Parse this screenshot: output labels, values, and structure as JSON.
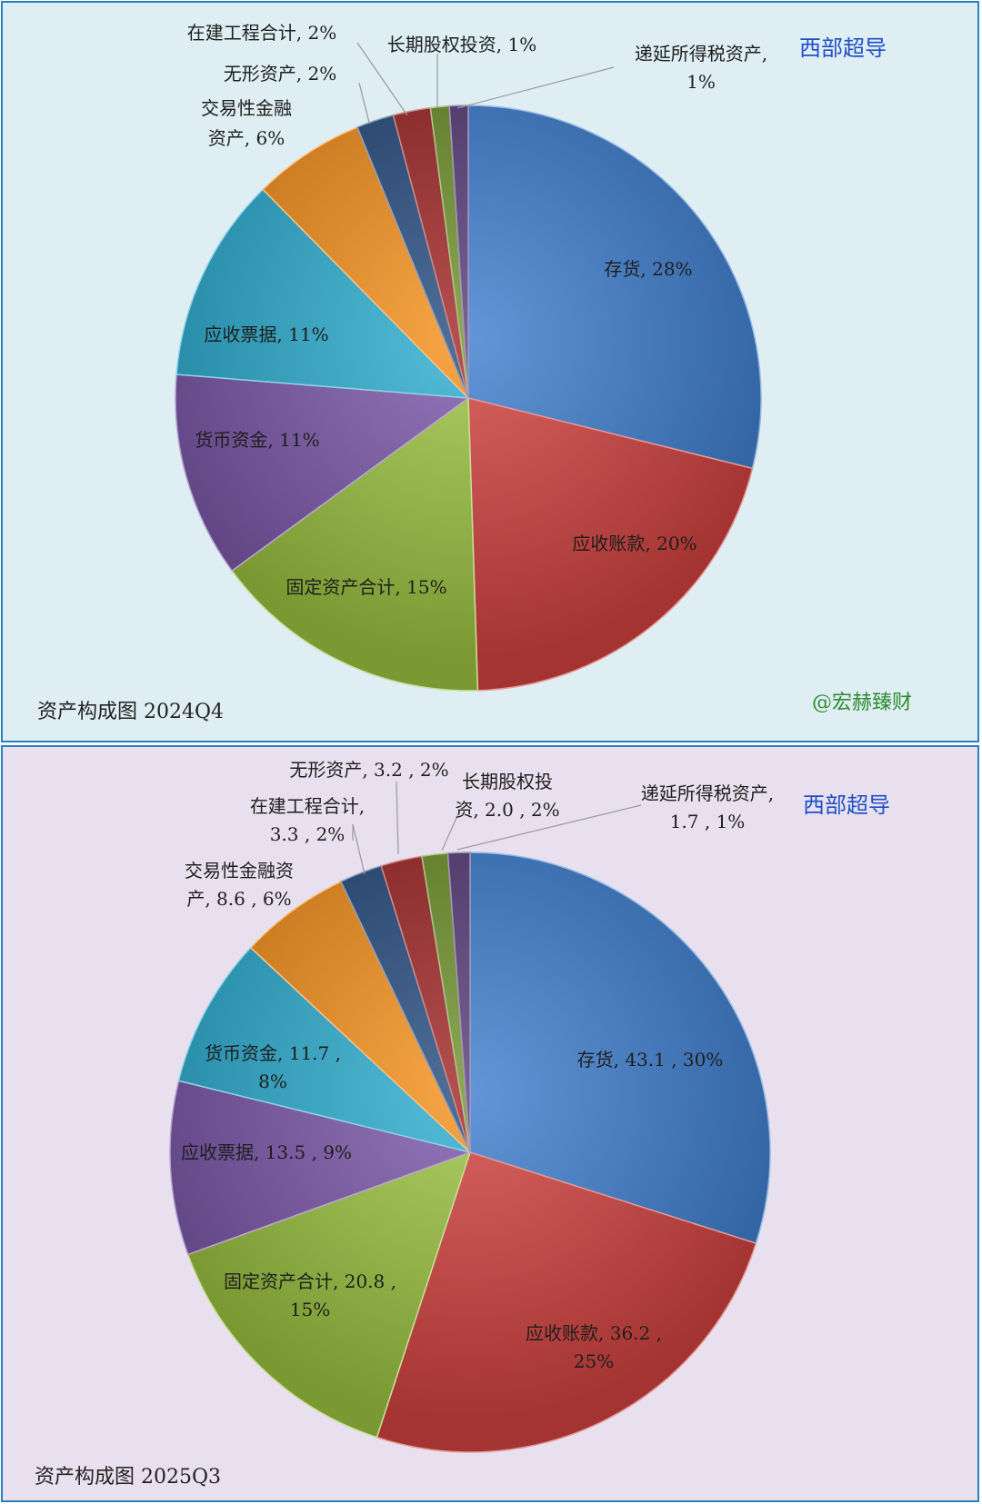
{
  "colors": {
    "panel1_bg": "#deeef3",
    "panel2_bg": "#e8e0ee",
    "border": "#2a7fbf",
    "company": "#1f4fc8",
    "watermark": "#2e8b2e"
  },
  "charts": [
    {
      "company": "西部超导",
      "caption": "资产构成图 2024Q4",
      "watermark": "@宏赫臻财"
    },
    {
      "company": "西部超导",
      "caption": "资产构成图 2025Q3"
    }
  ],
  "chart_data": [
    {
      "type": "pie",
      "title": "资产构成图 2024Q4",
      "slices": [
        {
          "name": "存货",
          "percent": 28,
          "color": "#3f7fd0",
          "label": [
            "存货, 28%"
          ]
        },
        {
          "name": "应收账款",
          "percent": 20,
          "color": "#d24340",
          "label": [
            "应收账款, 20%"
          ]
        },
        {
          "name": "固定资产合计",
          "percent": 15,
          "color": "#9cc442",
          "label": [
            "固定资产合计, 15%"
          ]
        },
        {
          "name": "货币资金",
          "percent": 11,
          "color": "#7d5aac",
          "label": [
            "货币资金, 11%"
          ]
        },
        {
          "name": "应收票据",
          "percent": 11,
          "color": "#30b0d2",
          "label": [
            "应收票据, 11%"
          ]
        },
        {
          "name": "交易性金融资产",
          "percent": 6,
          "color": "#f7931f",
          "label": [
            "交易性金融",
            "资产, 6%"
          ]
        },
        {
          "name": "无形资产",
          "percent": 2,
          "color": "#2a4f82",
          "label": [
            "无形资产, 2%"
          ]
        },
        {
          "name": "在建工程合计",
          "percent": 2,
          "color": "#a32a2a",
          "label": [
            "在建工程合计, 2%"
          ]
        },
        {
          "name": "长期股权投资",
          "percent": 1,
          "color": "#71952e",
          "label": [
            "长期股权投资, 1%"
          ]
        },
        {
          "name": "递延所得税资产",
          "percent": 1,
          "color": "#5a3f7c",
          "label": [
            "递延所得税资产,",
            "1%"
          ]
        }
      ]
    },
    {
      "type": "pie",
      "title": "资产构成图 2025Q3",
      "slices": [
        {
          "name": "存货",
          "value": 43.1,
          "percent": 30,
          "color": "#3f7fd0",
          "label": [
            "存货, 43.1 , 30%"
          ]
        },
        {
          "name": "应收账款",
          "value": 36.2,
          "percent": 25,
          "color": "#d24340",
          "label": [
            "应收账款, 36.2 ,",
            "25%"
          ]
        },
        {
          "name": "固定资产合计",
          "value": 20.8,
          "percent": 15,
          "color": "#9cc442",
          "label": [
            "固定资产合计, 20.8 ,",
            "15%"
          ]
        },
        {
          "name": "应收票据",
          "value": 13.5,
          "percent": 9,
          "color": "#7d5aac",
          "label": [
            "应收票据, 13.5 , 9%"
          ]
        },
        {
          "name": "货币资金",
          "value": 11.7,
          "percent": 8,
          "color": "#30b0d2",
          "label": [
            "货币资金, 11.7 ,",
            "8%"
          ]
        },
        {
          "name": "交易性金融资产",
          "value": 8.6,
          "percent": 6,
          "color": "#f7931f",
          "label": [
            "交易性金融资",
            "产, 8.6 , 6%"
          ]
        },
        {
          "name": "在建工程合计",
          "value": 3.3,
          "percent": 2,
          "color": "#2a4f82",
          "label": [
            "在建工程合计,",
            "3.3 , 2%"
          ]
        },
        {
          "name": "无形资产",
          "value": 3.2,
          "percent": 2,
          "color": "#a32a2a",
          "label": [
            "无形资产, 3.2 , 2%"
          ]
        },
        {
          "name": "长期股权投资",
          "value": 2.0,
          "percent": 2,
          "color": "#71952e",
          "label": [
            "长期股权投",
            "资, 2.0 , 2%"
          ]
        },
        {
          "name": "递延所得税资产",
          "value": 1.7,
          "percent": 1,
          "color": "#5a3f7c",
          "label": [
            "递延所得税资产,",
            "1.7 , 1%"
          ]
        }
      ]
    }
  ]
}
